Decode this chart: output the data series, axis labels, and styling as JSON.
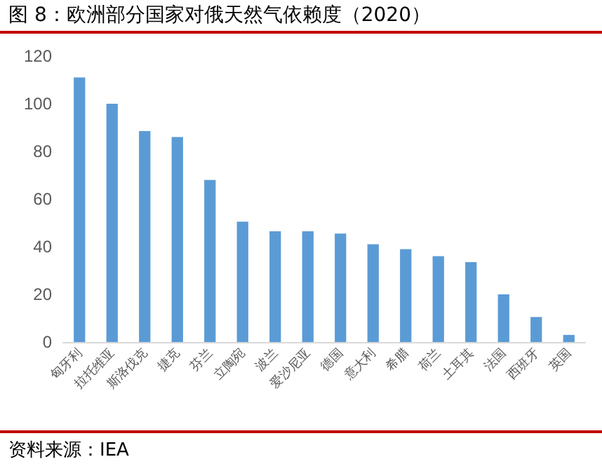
{
  "chart_data": {
    "type": "bar",
    "title": "图 8：欧洲部分国家对俄天然气依赖度（2020）",
    "categories": [
      "匈牙利",
      "拉托维亚",
      "斯洛伐克",
      "捷克",
      "芬兰",
      "立陶宛",
      "波兰",
      "爱沙尼亚",
      "德国",
      "意大利",
      "希腊",
      "荷兰",
      "土耳其",
      "法国",
      "西班牙",
      "英国"
    ],
    "values": [
      111,
      100,
      88.5,
      86,
      68,
      50.5,
      46.5,
      46.5,
      45.5,
      41,
      39,
      36,
      33.5,
      20,
      10.5,
      3
    ],
    "color": "#5b9bd5",
    "ylim": [
      0,
      120
    ],
    "yticks": [
      0,
      20,
      40,
      60,
      80,
      100,
      120
    ],
    "grid": false,
    "annotations": [
      "资料来源：IEA"
    ]
  }
}
